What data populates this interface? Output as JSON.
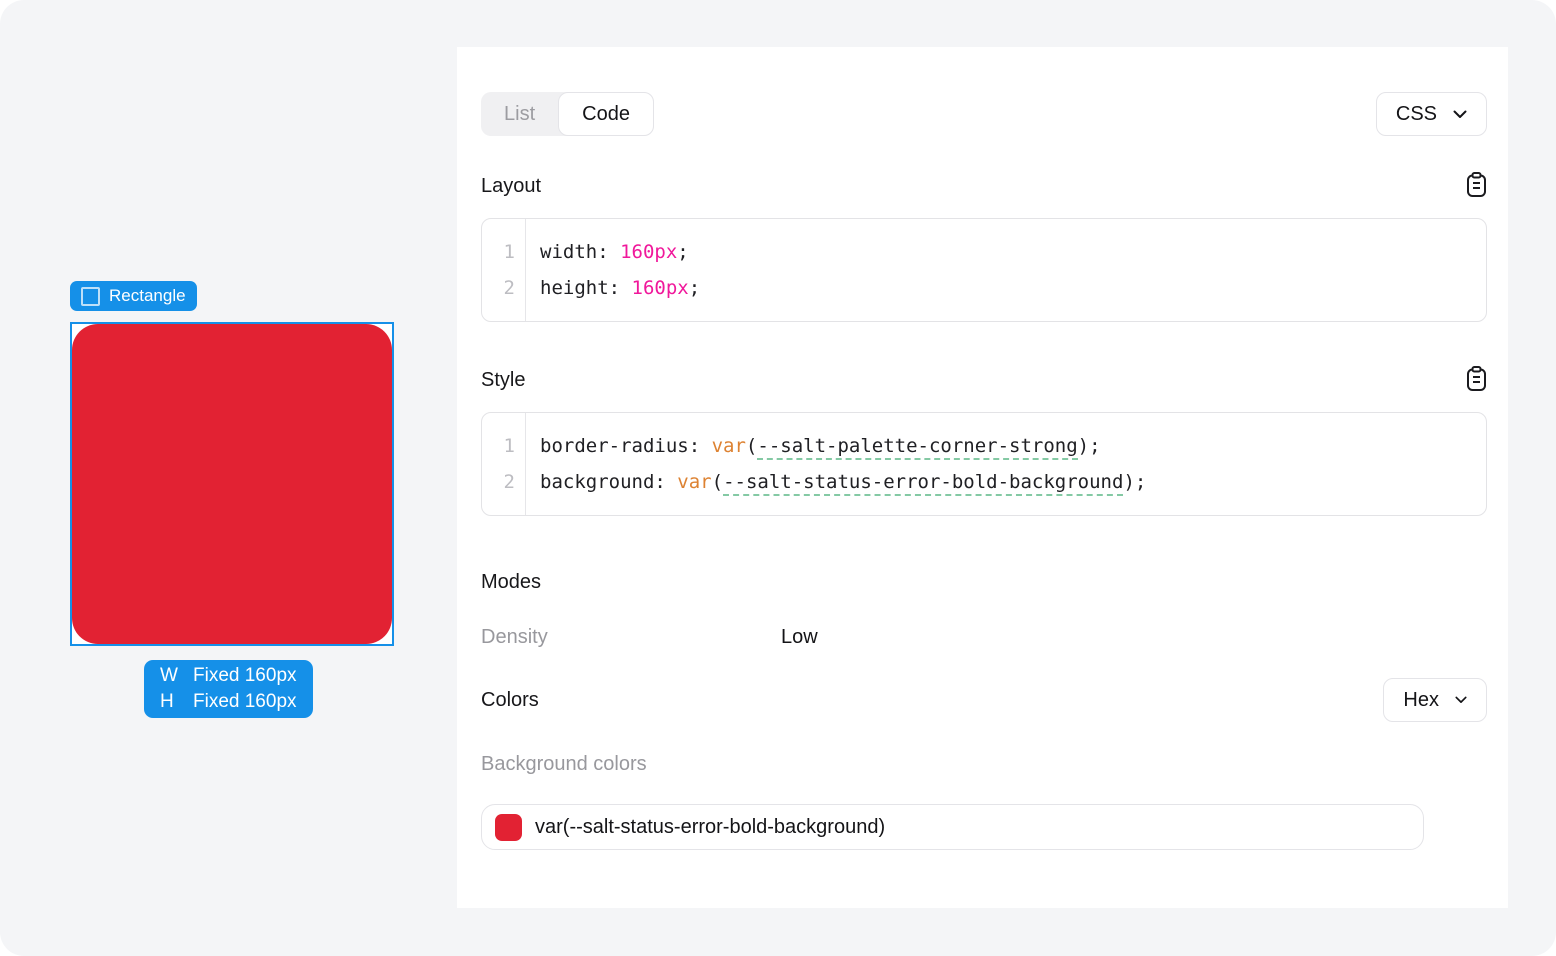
{
  "canvas": {
    "layer_badge": {
      "label": "Rectangle"
    },
    "shape_color": "#E22233",
    "size_badge": {
      "rows": [
        {
          "axis": "W",
          "value": "Fixed 160px"
        },
        {
          "axis": "H",
          "value": "Fixed 160px"
        }
      ]
    }
  },
  "inspector": {
    "view_toggle": {
      "options": [
        "List",
        "Code"
      ],
      "selected": "Code"
    },
    "language_select": {
      "value": "CSS"
    },
    "sections": {
      "layout": {
        "title": "Layout",
        "code": [
          {
            "line": "1",
            "tokens": [
              {
                "t": "width: ",
                "k": "plain"
              },
              {
                "t": "160px",
                "k": "value"
              },
              {
                "t": ";",
                "k": "plain"
              }
            ]
          },
          {
            "line": "2",
            "tokens": [
              {
                "t": "height: ",
                "k": "plain"
              },
              {
                "t": "160px",
                "k": "value"
              },
              {
                "t": ";",
                "k": "plain"
              }
            ]
          }
        ]
      },
      "style": {
        "title": "Style",
        "code": [
          {
            "line": "1",
            "tokens": [
              {
                "t": "border-radius: ",
                "k": "plain"
              },
              {
                "t": "var",
                "k": "function"
              },
              {
                "t": "(",
                "k": "plain"
              },
              {
                "t": "--salt-palette-corner-strong",
                "k": "variable"
              },
              {
                "t": ");",
                "k": "plain"
              }
            ]
          },
          {
            "line": "2",
            "tokens": [
              {
                "t": "background: ",
                "k": "plain"
              },
              {
                "t": "var",
                "k": "function"
              },
              {
                "t": "(",
                "k": "plain"
              },
              {
                "t": "--salt-status-error-bold-background",
                "k": "variable"
              },
              {
                "t": ");",
                "k": "plain"
              }
            ]
          }
        ]
      },
      "modes": {
        "title": "Modes",
        "rows": [
          {
            "label": "Density",
            "value": "Low"
          }
        ]
      },
      "colors": {
        "title": "Colors",
        "format_select": {
          "value": "Hex"
        },
        "groups": [
          {
            "label": "Background colors",
            "swatches": [
              {
                "color": "#E22233",
                "label": "var(--salt-status-error-bold-background)"
              }
            ]
          }
        ]
      }
    }
  },
  "theme": {
    "accent_blue": "#1590E8",
    "token_value_pink": "#F0189B",
    "token_function_orange": "#DD8232",
    "variable_underline_green": "#84C9A4"
  }
}
